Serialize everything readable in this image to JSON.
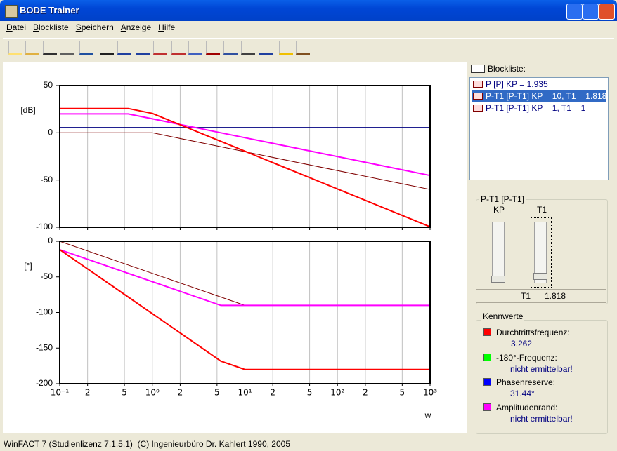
{
  "window": {
    "title": "BODE Trainer"
  },
  "menu": [
    "Datei",
    "Blockliste",
    "Speichern",
    "Anzeige",
    "Hilfe"
  ],
  "chart_data": [
    {
      "type": "line",
      "ylabel": "[dB]",
      "xscale": "log",
      "xlim": [
        0.1,
        1000
      ],
      "ylim": [
        -100,
        50
      ],
      "yticks": [
        50,
        0,
        -50,
        -100
      ],
      "x": [
        0.1,
        0.55,
        1,
        5.5,
        10,
        1000
      ],
      "series": [
        {
          "color": "#000080",
          "width": 1,
          "values": [
            5.73,
            5.73,
            5.73,
            5.73,
            5.73,
            5.73
          ]
        },
        {
          "color": "#800000",
          "width": 1,
          "values": [
            0,
            0,
            0,
            -14.8,
            -20,
            -60
          ]
        },
        {
          "color": "#ff00ff",
          "width": 2,
          "values": [
            20,
            20,
            14.8,
            0,
            -5.19,
            -45.2
          ]
        },
        {
          "color": "#ff0000",
          "width": 2,
          "values": [
            25.7,
            25.7,
            20.5,
            -9.1,
            -19.5,
            -99.5
          ]
        }
      ]
    },
    {
      "type": "line",
      "ylabel": "[°]",
      "xlabel": "w",
      "xscale": "log",
      "xlim": [
        0.1,
        1000
      ],
      "ylim": [
        -200,
        0
      ],
      "yticks": [
        0,
        -50,
        -100,
        -150,
        -200
      ],
      "xticks": [
        {
          "value": 0.1,
          "label": "10⁻¹"
        },
        {
          "value": 0.2,
          "label": "2"
        },
        {
          "value": 0.5,
          "label": "5"
        },
        {
          "value": 1,
          "label": "10⁰"
        },
        2,
        5,
        {
          "value": 10,
          "label": "10¹"
        },
        {
          "value": 20,
          "label": "2"
        },
        {
          "value": 50,
          "label": "5"
        },
        {
          "value": 100,
          "label": "10²"
        },
        {
          "value": 200,
          "label": "2"
        },
        {
          "value": 500,
          "label": "5"
        },
        {
          "value": 1000,
          "label": "10³"
        }
      ],
      "x": [
        0.1,
        0.55,
        1,
        5.5,
        10,
        1000
      ],
      "series": [
        {
          "color": "#000080",
          "width": 1,
          "values": [
            0,
            0,
            0,
            0,
            0,
            0
          ]
        },
        {
          "color": "#800000",
          "width": 1,
          "values": [
            0,
            -33.3,
            -45,
            -78.3,
            -90,
            -90
          ]
        },
        {
          "color": "#ff00ff",
          "width": 2,
          "values": [
            -11.7,
            -45,
            -56.7,
            -90,
            -90,
            -90
          ]
        },
        {
          "color": "#ff0000",
          "width": 2,
          "values": [
            -11.7,
            -78.3,
            -101.7,
            -168.3,
            -180,
            -180
          ]
        }
      ]
    }
  ],
  "blocklist": {
    "label": "Blockliste:",
    "items": [
      "P [P] KP = 1.935",
      "P-T1 [P-T1] KP = 10, T1 = 1.818",
      "P-T1 [P-T1] KP = 1, T1 = 1"
    ],
    "selected": 1
  },
  "block_panel": {
    "title": "P-T1 [P-T1]",
    "sliders": [
      "KP",
      "T1"
    ],
    "readout": {
      "label": "T1 =",
      "value": 1.818
    }
  },
  "kennwerte": {
    "title": "Kennwerte",
    "items": [
      {
        "label": "Durchtrittsfrequenz:",
        "value": 3.262,
        "color": "#ff0000"
      },
      {
        "label": "-180°-Frequenz:",
        "value": "nicht ermittelbar!",
        "color": "#00ff00"
      },
      {
        "label": "Phasenreserve:",
        "value": "31.44°",
        "color": "#0000ff"
      },
      {
        "label": "Amplitudenrand:",
        "value": "nicht ermittelbar!",
        "color": "#ff00ff"
      }
    ]
  },
  "status_bar": "WinFACT 7 (Studienlizenz 7.1.5.1)  (C) Ingenieurbüro Dr. Kahlert 1990, 2005"
}
